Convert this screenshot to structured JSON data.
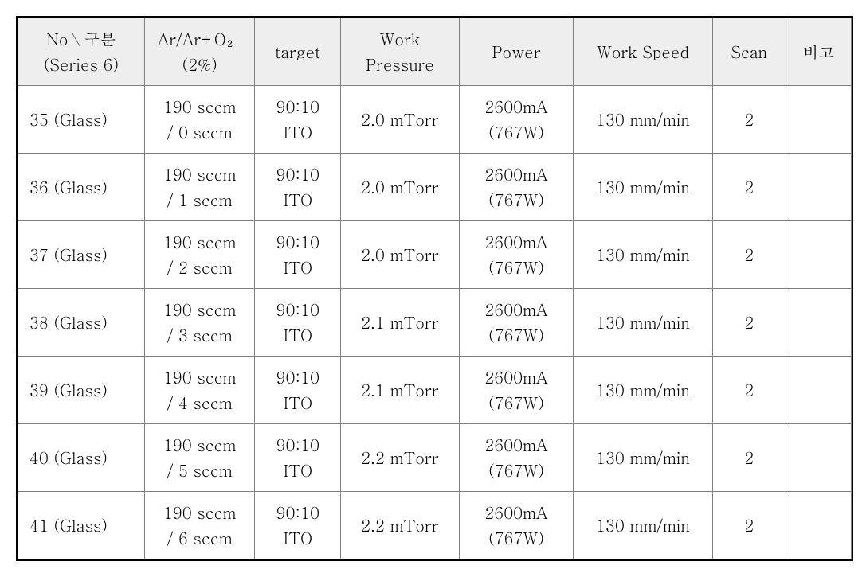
{
  "table": {
    "columns": [
      {
        "line1": "No＼구분",
        "line2": "(Series 6)",
        "width_class": "col0"
      },
      {
        "line1": "Ar/Ar+O₂",
        "line2": "(2%)",
        "width_class": "col1"
      },
      {
        "line1": "target",
        "line2": "",
        "width_class": "col2"
      },
      {
        "line1": "Work",
        "line2": "Pressure",
        "width_class": "col3"
      },
      {
        "line1": "Power",
        "line2": "",
        "width_class": "col4"
      },
      {
        "line1": "Work Speed",
        "line2": "",
        "width_class": "col5"
      },
      {
        "line1": "Scan",
        "line2": "",
        "width_class": "col6"
      },
      {
        "line1": "비고",
        "line2": "",
        "width_class": "col7"
      }
    ],
    "rows": [
      {
        "no": "35 (Glass)",
        "ar_line1": "190 sccm",
        "ar_line2": "/ 0 sccm",
        "target_line1": "90:10",
        "target_line2": "ITO",
        "pressure": "2.0 mTorr",
        "power_line1": "2600mA",
        "power_line2": "(767W)",
        "speed": "130 mm/min",
        "scan": "2",
        "remark": ""
      },
      {
        "no": "36 (Glass)",
        "ar_line1": "190 sccm",
        "ar_line2": "/ 1 sccm",
        "target_line1": "90:10",
        "target_line2": "ITO",
        "pressure": "2.0 mTorr",
        "power_line1": "2600mA",
        "power_line2": "(767W)",
        "speed": "130 mm/min",
        "scan": "2",
        "remark": ""
      },
      {
        "no": "37 (Glass)",
        "ar_line1": "190 sccm",
        "ar_line2": "/ 2 sccm",
        "target_line1": "90:10",
        "target_line2": "ITO",
        "pressure": "2.0 mTorr",
        "power_line1": "2600mA",
        "power_line2": "(767W)",
        "speed": "130 mm/min",
        "scan": "2",
        "remark": ""
      },
      {
        "no": "38 (Glass)",
        "ar_line1": "190 sccm",
        "ar_line2": "/ 3 sccm",
        "target_line1": "90:10",
        "target_line2": "ITO",
        "pressure": "2.1 mTorr",
        "power_line1": "2600mA",
        "power_line2": "(767W)",
        "speed": "130 mm/min",
        "scan": "2",
        "remark": ""
      },
      {
        "no": "39 (Glass)",
        "ar_line1": "190 sccm",
        "ar_line2": "/ 4 sccm",
        "target_line1": "90:10",
        "target_line2": "ITO",
        "pressure": "2.1 mTorr",
        "power_line1": "2600mA",
        "power_line2": "(767W)",
        "speed": "130 mm/min",
        "scan": "2",
        "remark": ""
      },
      {
        "no": "40 (Glass)",
        "ar_line1": "190 sccm",
        "ar_line2": "/ 5 sccm",
        "target_line1": "90:10",
        "target_line2": "ITO",
        "pressure": "2.2 mTorr",
        "power_line1": "2600mA",
        "power_line2": "(767W)",
        "speed": "130 mm/min",
        "scan": "2",
        "remark": ""
      },
      {
        "no": "41 (Glass)",
        "ar_line1": "190 sccm",
        "ar_line2": "/ 6 sccm",
        "target_line1": "90:10",
        "target_line2": "ITO",
        "pressure": "2.2 mTorr",
        "power_line1": "2600mA",
        "power_line2": "(767W)",
        "speed": "130 mm/min",
        "scan": "2",
        "remark": ""
      }
    ],
    "header_bg": "#eeeeee",
    "border_color_outer": "#000000",
    "border_color_inner": "#7f7f7f",
    "font_size_pt": 15
  }
}
